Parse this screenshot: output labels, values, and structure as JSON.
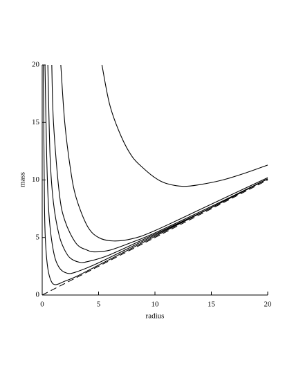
{
  "chart_data": {
    "type": "line",
    "x_label": "radius",
    "y_label": "mass",
    "xlim": [
      0,
      20
    ],
    "ylim": [
      0,
      20
    ],
    "xticks": [
      0,
      5,
      10,
      15,
      20
    ],
    "yticks": [
      0,
      5,
      10,
      15,
      20
    ],
    "series": [
      {
        "color": "#000000",
        "x": [
          0.1,
          0.2,
          0.3,
          0.5,
          0.8,
          1.2,
          2,
          3,
          5,
          10,
          15,
          20
        ],
        "values": [
          20,
          8,
          4.5,
          2.3,
          1.2,
          0.9,
          1.2,
          1.6,
          2.6,
          5.1,
          7.6,
          10.1
        ]
      },
      {
        "color": "#000000",
        "x": [
          0.25,
          0.4,
          0.6,
          1,
          1.5,
          2.2,
          3,
          5,
          10,
          15,
          20
        ],
        "values": [
          20,
          12,
          7,
          3.8,
          2.4,
          1.9,
          2.0,
          2.8,
          5.2,
          7.6,
          10.1
        ]
      },
      {
        "color": "#000000",
        "x": [
          0.5,
          0.7,
          1,
          1.5,
          2,
          2.5,
          3.3,
          4,
          6,
          10,
          15,
          20
        ],
        "values": [
          20,
          12,
          8,
          5.2,
          3.9,
          3.2,
          2.85,
          2.9,
          3.5,
          5.3,
          7.6,
          10.1
        ]
      },
      {
        "color": "#000000",
        "x": [
          0.85,
          1,
          1.5,
          2,
          3,
          4,
          4.7,
          6,
          8,
          10,
          15,
          20
        ],
        "values": [
          20,
          15,
          9,
          6.5,
          4.5,
          3.9,
          3.75,
          3.9,
          4.6,
          5.4,
          7.7,
          10.1
        ]
      },
      {
        "color": "#000000",
        "x": [
          1.65,
          2,
          2.5,
          3,
          4,
          5,
          6.3,
          8,
          10,
          15,
          20
        ],
        "values": [
          20,
          15,
          11,
          8.5,
          6,
          5,
          4.7,
          4.9,
          5.6,
          7.9,
          10.2
        ]
      },
      {
        "color": "#000000",
        "x": [
          5.3,
          6,
          7,
          8,
          9,
          10,
          11,
          12.5,
          14,
          16,
          18,
          20
        ],
        "values": [
          20,
          16.5,
          13.8,
          12,
          11,
          10.2,
          9.7,
          9.45,
          9.6,
          10,
          10.6,
          11.3
        ]
      },
      {
        "color": "#000000",
        "dashed": true,
        "x": [
          0,
          20
        ],
        "values": [
          0,
          10
        ]
      }
    ]
  }
}
